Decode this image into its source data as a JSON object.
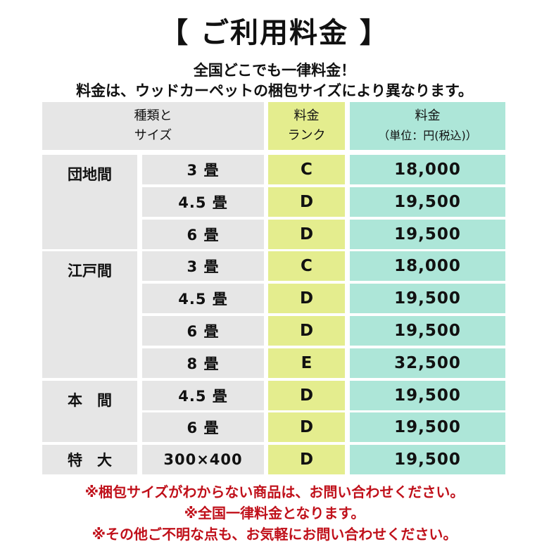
{
  "title": "【 ご利用料金 】",
  "subtitle1": "全国どこでも一律料金！",
  "subtitle2": "料金は、ウッドカーペットの梱包サイズにより異なります。",
  "header": {
    "type_line1": "種類と",
    "type_line2": "サイズ",
    "rank_line1": "料金",
    "rank_line2": "ランク",
    "price_line1": "料金",
    "price_line2": "（単位：円(税込)）"
  },
  "groups": [
    {
      "name": "団地間",
      "rows": [
        {
          "size": "3 畳",
          "rank": "C",
          "price": "18,000"
        },
        {
          "size": "4.5 畳",
          "rank": "D",
          "price": "19,500"
        },
        {
          "size": "6 畳",
          "rank": "D",
          "price": "19,500"
        }
      ]
    },
    {
      "name": "江戸間",
      "rows": [
        {
          "size": "3 畳",
          "rank": "C",
          "price": "18,000"
        },
        {
          "size": "4.5 畳",
          "rank": "D",
          "price": "19,500"
        },
        {
          "size": "6 畳",
          "rank": "D",
          "price": "19,500"
        },
        {
          "size": "8 畳",
          "rank": "E",
          "price": "32,500"
        }
      ]
    },
    {
      "name": "本　間",
      "rows": [
        {
          "size": "4.5 畳",
          "rank": "D",
          "price": "19,500"
        },
        {
          "size": "6 畳",
          "rank": "D",
          "price": "19,500"
        }
      ]
    },
    {
      "name": "特　大",
      "rows": [
        {
          "size": "300×400",
          "rank": "D",
          "price": "19,500"
        }
      ]
    }
  ],
  "notes": [
    "※梱包サイズがわからない商品は、お問い合わせください。",
    "※全国一律料金となります。",
    "※その他ご不明な点も、お気軽にお問い合わせください。"
  ],
  "colors": {
    "gray": "#e6e6e6",
    "rank": "#e4ed8e",
    "price": "#ade6d8",
    "note": "#c0101a"
  }
}
